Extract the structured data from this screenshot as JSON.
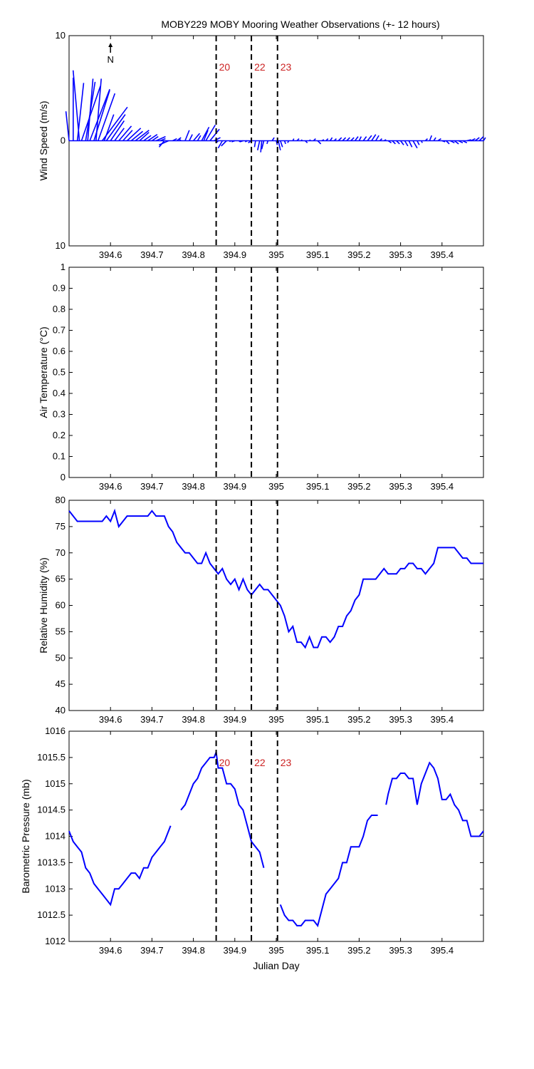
{
  "title": "MOBY229 MOBY Mooring Weather Observations (+- 12 hours)",
  "north_label": "N",
  "colors": {
    "series": "#0000ff",
    "event_line": "#000000",
    "event_label": "#cc2222",
    "axes": "#000000"
  },
  "chart_data": [
    {
      "type": "line",
      "id": "wind",
      "title": "",
      "xlabel": "",
      "ylabel": "Wind Speed (m/s)",
      "xlim": [
        394.5,
        395.5
      ],
      "ylim": [
        -10,
        10
      ],
      "yticks": [
        10,
        0,
        10
      ],
      "xticks": [
        394.6,
        394.7,
        394.8,
        394.9,
        395,
        395.1,
        395.2,
        395.3,
        395.4
      ],
      "grid": false,
      "style": "wind-sticks",
      "vertical_markers": [
        {
          "x": 394.855,
          "label": "20"
        },
        {
          "x": 394.94,
          "label": "22"
        },
        {
          "x": 395.003,
          "label": "23"
        }
      ],
      "sticks": [
        [
          394.5,
          -0.3,
          2.8
        ],
        [
          394.51,
          0.0,
          6.0
        ],
        [
          394.52,
          0.6,
          5.5
        ],
        [
          394.525,
          -0.6,
          6.7
        ],
        [
          394.53,
          1.8,
          5.2
        ],
        [
          394.54,
          0.9,
          5.6
        ],
        [
          394.545,
          0.5,
          5.9
        ],
        [
          394.55,
          1.9,
          4.9
        ],
        [
          394.56,
          1.5,
          4.8
        ],
        [
          394.565,
          0.5,
          5.9
        ],
        [
          394.57,
          1.6,
          4.5
        ],
        [
          394.58,
          2.4,
          3.2
        ],
        [
          394.585,
          0.9,
          2.5
        ],
        [
          394.59,
          1.8,
          2.5
        ],
        [
          394.6,
          1.3,
          1.9
        ],
        [
          394.61,
          0.9,
          1.2
        ],
        [
          394.62,
          1.2,
          1.4
        ],
        [
          394.63,
          0.9,
          1.0
        ],
        [
          394.64,
          1.3,
          1.2
        ],
        [
          394.65,
          1.1,
          0.9
        ],
        [
          394.66,
          1.3,
          1.0
        ],
        [
          394.67,
          0.9,
          0.8
        ],
        [
          394.68,
          0.7,
          0.5
        ],
        [
          394.69,
          0.9,
          0.6
        ],
        [
          394.7,
          0.6,
          0.4
        ],
        [
          394.71,
          0.9,
          0.4
        ],
        [
          394.72,
          0.5,
          0.2
        ],
        [
          394.73,
          -0.5,
          -0.6
        ],
        [
          394.74,
          -0.9,
          -0.4
        ],
        [
          394.75,
          0.4,
          0.2
        ],
        [
          394.76,
          0.4,
          0.3
        ],
        [
          394.77,
          -0.2,
          0.2
        ],
        [
          394.78,
          0.4,
          1.0
        ],
        [
          394.79,
          0.3,
          0.6
        ],
        [
          394.8,
          0.6,
          0.7
        ],
        [
          394.81,
          0.3,
          0.5
        ],
        [
          394.82,
          0.7,
          1.3
        ],
        [
          394.825,
          0.4,
          1.0
        ],
        [
          394.83,
          0.9,
          1.5
        ],
        [
          394.84,
          0.9,
          1.1
        ],
        [
          394.85,
          0.6,
          0.3
        ],
        [
          394.86,
          -0.2,
          -0.2
        ],
        [
          394.87,
          -0.4,
          -0.7
        ],
        [
          394.88,
          -0.5,
          -0.5
        ],
        [
          394.89,
          -0.1,
          -0.1
        ],
        [
          394.9,
          -0.3,
          -0.1
        ],
        [
          394.91,
          0.1,
          -0.1
        ],
        [
          394.92,
          -0.3,
          -0.1
        ],
        [
          394.93,
          -0.2,
          -0.1
        ],
        [
          394.94,
          -0.3,
          -0.2
        ],
        [
          394.95,
          -0.1,
          -0.6
        ],
        [
          394.96,
          -0.2,
          -0.9
        ],
        [
          394.965,
          -0.1,
          -1.1
        ],
        [
          394.97,
          -0.2,
          -0.8
        ],
        [
          394.98,
          -0.1,
          -0.3
        ],
        [
          394.99,
          0.2,
          0.3
        ],
        [
          395.0,
          0.1,
          -0.4
        ],
        [
          395.005,
          0.2,
          -0.9
        ],
        [
          395.01,
          0.2,
          -0.6
        ],
        [
          395.02,
          0.1,
          -0.3
        ],
        [
          395.03,
          -0.1,
          -0.2
        ],
        [
          395.04,
          0.1,
          0.2
        ],
        [
          395.05,
          0.2,
          0.2
        ],
        [
          395.06,
          0.1,
          0.1
        ],
        [
          395.07,
          0.2,
          -0.2
        ],
        [
          395.08,
          0.1,
          0.1
        ],
        [
          395.09,
          0.2,
          0.2
        ],
        [
          395.1,
          0.3,
          -0.3
        ],
        [
          395.11,
          0.2,
          0.1
        ],
        [
          395.12,
          0.2,
          0.2
        ],
        [
          395.13,
          0.2,
          0.3
        ],
        [
          395.14,
          0.2,
          0.2
        ],
        [
          395.15,
          0.3,
          0.3
        ],
        [
          395.16,
          0.3,
          0.3
        ],
        [
          395.17,
          0.3,
          0.3
        ],
        [
          395.18,
          0.3,
          0.3
        ],
        [
          395.19,
          0.3,
          0.4
        ],
        [
          395.2,
          0.2,
          0.4
        ],
        [
          395.21,
          0.3,
          0.4
        ],
        [
          395.22,
          0.4,
          0.5
        ],
        [
          395.23,
          0.4,
          0.6
        ],
        [
          395.24,
          0.3,
          0.5
        ],
        [
          395.25,
          0.2,
          0.2
        ],
        [
          395.26,
          0.2,
          0.1
        ],
        [
          395.27,
          0.3,
          -0.2
        ],
        [
          395.28,
          0.3,
          -0.3
        ],
        [
          395.29,
          0.3,
          -0.3
        ],
        [
          395.3,
          0.3,
          -0.4
        ],
        [
          395.31,
          0.3,
          -0.5
        ],
        [
          395.32,
          0.3,
          -0.6
        ],
        [
          395.33,
          0.4,
          -0.7
        ],
        [
          395.34,
          0.2,
          -0.4
        ],
        [
          395.35,
          0.1,
          -0.2
        ],
        [
          395.36,
          0.2,
          0.2
        ],
        [
          395.37,
          0.2,
          0.5
        ],
        [
          395.38,
          0.2,
          0.3
        ],
        [
          395.39,
          0.3,
          0.2
        ],
        [
          395.4,
          0.3,
          -0.1
        ],
        [
          395.41,
          0.3,
          -0.3
        ],
        [
          395.42,
          0.4,
          -0.2
        ],
        [
          395.43,
          0.4,
          -0.3
        ],
        [
          395.44,
          0.4,
          -0.2
        ],
        [
          395.45,
          0.4,
          -0.2
        ],
        [
          395.46,
          0.4,
          0.1
        ],
        [
          395.47,
          0.4,
          0.2
        ],
        [
          395.48,
          0.4,
          0.3
        ],
        [
          395.49,
          0.4,
          0.4
        ],
        [
          395.5,
          0.2,
          0.3
        ]
      ]
    },
    {
      "type": "line",
      "id": "air-temp",
      "title": "",
      "xlabel": "",
      "ylabel": "Air Temperature (°C)",
      "xlim": [
        394.5,
        395.5
      ],
      "ylim": [
        0,
        1
      ],
      "yticks": [
        0,
        0.1,
        0.2,
        0.3,
        0.4,
        0.5,
        0.6,
        0.7,
        0.8,
        0.9,
        1
      ],
      "xticks": [
        394.6,
        394.7,
        394.8,
        394.9,
        395,
        395.1,
        395.2,
        395.3,
        395.4
      ],
      "grid": false,
      "vertical_markers": [
        {
          "x": 394.855
        },
        {
          "x": 394.94
        },
        {
          "x": 395.003
        }
      ],
      "series": []
    },
    {
      "type": "line",
      "id": "humidity",
      "title": "",
      "xlabel": "",
      "ylabel": "Relative Humidity (%)",
      "xlim": [
        394.5,
        395.5
      ],
      "ylim": [
        40,
        80
      ],
      "yticks": [
        40,
        45,
        50,
        55,
        60,
        65,
        70,
        75,
        80
      ],
      "xticks": [
        394.6,
        394.7,
        394.8,
        394.9,
        395,
        395.1,
        395.2,
        395.3,
        395.4
      ],
      "grid": false,
      "vertical_markers": [
        {
          "x": 394.855
        },
        {
          "x": 394.94
        },
        {
          "x": 395.003
        }
      ],
      "series": [
        {
          "x": [
            394.5,
            394.52,
            394.54,
            394.56,
            394.58,
            394.59,
            394.6,
            394.61,
            394.62,
            394.63,
            394.64,
            394.65,
            394.66,
            394.67,
            394.68,
            394.69,
            394.7,
            394.71,
            394.72,
            394.73,
            394.74,
            394.75,
            394.76,
            394.77,
            394.78,
            394.79,
            394.8,
            394.81,
            394.82,
            394.83,
            394.84,
            394.85,
            394.86,
            394.87,
            394.88,
            394.89,
            394.9,
            394.91,
            394.92,
            394.93,
            394.94,
            394.95,
            394.96,
            394.97,
            394.98,
            394.99,
            395.0,
            395.01,
            395.02,
            395.03,
            395.04,
            395.05,
            395.06,
            395.07,
            395.08,
            395.09,
            395.1,
            395.11,
            395.12,
            395.13,
            395.14,
            395.15,
            395.16,
            395.17,
            395.18,
            395.19,
            395.2,
            395.21,
            395.22,
            395.23,
            395.24,
            395.25,
            395.26,
            395.27,
            395.28,
            395.29,
            395.3,
            395.31,
            395.32,
            395.33,
            395.34,
            395.35,
            395.36,
            395.37,
            395.38,
            395.39,
            395.4,
            395.41,
            395.42,
            395.43,
            395.44,
            395.45,
            395.46,
            395.47,
            395.48,
            395.49,
            395.5
          ],
          "y": [
            78,
            76,
            76,
            76,
            76,
            77,
            76,
            78,
            75,
            76,
            77,
            77,
            77,
            77,
            77,
            77,
            78,
            77,
            77,
            77,
            75,
            74,
            72,
            71,
            70,
            70,
            69,
            68,
            68,
            70,
            68,
            67,
            66,
            67,
            65,
            64,
            65,
            63,
            65,
            63,
            62,
            63,
            64,
            63,
            63,
            62,
            61,
            60,
            58,
            55,
            56,
            53,
            53,
            52,
            54,
            52,
            52,
            54,
            54,
            53,
            54,
            56,
            56,
            58,
            59,
            61,
            62,
            65,
            65,
            65,
            65,
            66,
            67,
            66,
            66,
            66,
            67,
            67,
            68,
            68,
            67,
            67,
            66,
            67,
            68,
            71,
            71,
            71,
            71,
            71,
            70,
            69,
            69,
            68,
            68,
            68,
            68
          ]
        }
      ]
    },
    {
      "type": "line",
      "id": "pressure",
      "title": "",
      "xlabel": "Julian Day",
      "ylabel": "Barometric Pressure (mb)",
      "xlim": [
        394.5,
        395.5
      ],
      "ylim": [
        1012,
        1016
      ],
      "yticks": [
        1012,
        1012.5,
        1013,
        1013.5,
        1014,
        1014.5,
        1015,
        1015.5,
        1016
      ],
      "xticks": [
        394.6,
        394.7,
        394.8,
        394.9,
        395,
        395.1,
        395.2,
        395.3,
        395.4
      ],
      "grid": false,
      "vertical_markers": [
        {
          "x": 394.855,
          "label": "20"
        },
        {
          "x": 394.94,
          "label": "22"
        },
        {
          "x": 395.003,
          "label": "23"
        }
      ],
      "segments": [
        {
          "x": [
            394.5,
            394.51,
            394.52,
            394.53,
            394.54,
            394.55,
            394.56,
            394.57,
            394.58,
            394.59,
            394.6,
            394.61,
            394.62,
            394.63,
            394.64,
            394.65,
            394.66,
            394.67,
            394.68,
            394.69,
            394.7,
            394.71,
            394.72,
            394.73,
            394.74,
            394.745
          ],
          "y": [
            1014.1,
            1013.9,
            1013.8,
            1013.7,
            1013.4,
            1013.3,
            1013.1,
            1013.0,
            1012.9,
            1012.8,
            1012.7,
            1013.0,
            1013.0,
            1013.1,
            1013.2,
            1013.3,
            1013.3,
            1013.2,
            1013.4,
            1013.4,
            1013.6,
            1013.7,
            1013.8,
            1013.9,
            1014.1,
            1014.2
          ]
        },
        {
          "x": [
            394.77,
            394.78,
            394.79,
            394.8,
            394.81,
            394.82,
            394.83,
            394.84,
            394.85,
            394.855,
            394.86,
            394.87,
            394.88,
            394.89,
            394.9,
            394.91,
            394.92,
            394.93,
            394.94,
            394.95,
            394.96,
            394.97
          ],
          "y": [
            1014.5,
            1014.6,
            1014.8,
            1015.0,
            1015.1,
            1015.3,
            1015.4,
            1015.5,
            1015.5,
            1015.6,
            1015.3,
            1015.3,
            1015.0,
            1015.0,
            1014.9,
            1014.6,
            1014.5,
            1014.2,
            1013.9,
            1013.8,
            1013.7,
            1013.4
          ]
        },
        {
          "x": [
            395.01,
            395.02,
            395.03,
            395.04,
            395.05,
            395.06,
            395.07,
            395.08,
            395.09,
            395.1,
            395.11,
            395.12,
            395.13,
            395.14,
            395.15,
            395.16,
            395.17,
            395.18,
            395.19,
            395.2,
            395.21,
            395.22,
            395.23,
            395.24,
            395.245
          ],
          "y": [
            1012.7,
            1012.5,
            1012.4,
            1012.4,
            1012.3,
            1012.3,
            1012.4,
            1012.4,
            1012.4,
            1012.3,
            1012.6,
            1012.9,
            1013.0,
            1013.1,
            1013.2,
            1013.5,
            1013.5,
            1013.8,
            1013.8,
            1013.8,
            1014.0,
            1014.3,
            1014.4,
            1014.4,
            1014.4
          ]
        },
        {
          "x": [
            395.265,
            395.27,
            395.28,
            395.29,
            395.3,
            395.31,
            395.32,
            395.33,
            395.34,
            395.35,
            395.36,
            395.37,
            395.38,
            395.39,
            395.4,
            395.41,
            395.42,
            395.43,
            395.44,
            395.45,
            395.46,
            395.47,
            395.48,
            395.49,
            395.5
          ],
          "y": [
            1014.6,
            1014.8,
            1015.1,
            1015.1,
            1015.2,
            1015.2,
            1015.1,
            1015.1,
            1014.6,
            1015.0,
            1015.2,
            1015.4,
            1015.3,
            1015.1,
            1014.7,
            1014.7,
            1014.8,
            1014.6,
            1014.5,
            1014.3,
            1014.3,
            1014.0,
            1014.0,
            1014.0,
            1014.1
          ]
        }
      ]
    }
  ]
}
